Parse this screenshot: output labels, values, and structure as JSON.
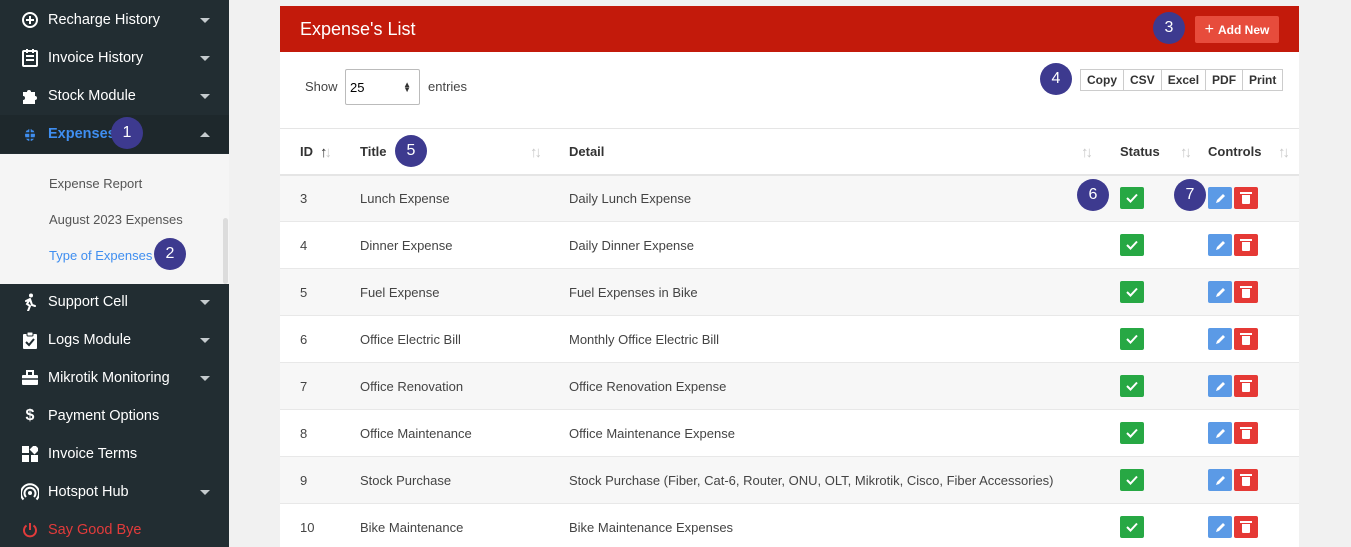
{
  "sidebar": {
    "items": [
      {
        "label": "Recharge History",
        "icon": "recharge-icon"
      },
      {
        "label": "Invoice History",
        "icon": "invoice-icon"
      },
      {
        "label": "Stock Module",
        "icon": "puzzle-icon"
      },
      {
        "label": "Expenses",
        "icon": "bug-icon",
        "active": true
      },
      {
        "label": "Support Cell",
        "icon": "walking-icon"
      },
      {
        "label": "Logs Module",
        "icon": "clipboard-check-icon"
      },
      {
        "label": "Mikrotik Monitoring",
        "icon": "toolbox-icon"
      },
      {
        "label": "Payment Options",
        "icon": "dollar-icon"
      },
      {
        "label": "Invoice Terms",
        "icon": "grid-icon"
      },
      {
        "label": "Hotspot Hub",
        "icon": "hotspot-icon"
      },
      {
        "label": "Say Good Bye",
        "icon": "power-icon"
      }
    ],
    "submenu": [
      {
        "label": "Expense Report"
      },
      {
        "label": "August 2023 Expenses"
      },
      {
        "label": "Type of Expenses",
        "active": true
      }
    ]
  },
  "badges": [
    "1",
    "2",
    "3",
    "4",
    "5",
    "6",
    "7"
  ],
  "panel": {
    "title": "Expense's List",
    "add_label": "Add New"
  },
  "length": {
    "show_label": "Show",
    "value": "25",
    "entries_label": "entries"
  },
  "export": [
    "Copy",
    "CSV",
    "Excel",
    "PDF",
    "Print"
  ],
  "table": {
    "columns": [
      "ID",
      "Title",
      "Detail",
      "Status",
      "Controls"
    ],
    "rows": [
      {
        "id": "3",
        "title": "Lunch Expense",
        "detail": "Daily Lunch Expense"
      },
      {
        "id": "4",
        "title": "Dinner Expense",
        "detail": "Daily Dinner Expense"
      },
      {
        "id": "5",
        "title": "Fuel Expense",
        "detail": "Fuel Expenses in Bike"
      },
      {
        "id": "6",
        "title": "Office Electric Bill",
        "detail": "Monthly Office Electric Bill"
      },
      {
        "id": "7",
        "title": "Office Renovation",
        "detail": "Office Renovation Expense"
      },
      {
        "id": "8",
        "title": "Office Maintenance",
        "detail": "Office Maintenance Expense"
      },
      {
        "id": "9",
        "title": "Stock Purchase",
        "detail": "Stock Purchase (Fiber, Cat-6, Router, ONU, OLT, Mikrotik, Cisco, Fiber Accessories)"
      },
      {
        "id": "10",
        "title": "Bike Maintenance",
        "detail": "Bike Maintenance Expenses"
      }
    ]
  },
  "colors": {
    "header_red": "#c31a0b",
    "sidebar_bg": "#222d32",
    "status_green": "#27a844",
    "edit_blue": "#5b9ae6",
    "delete_red": "#e53935",
    "badge_purple": "#3d3a8f"
  }
}
